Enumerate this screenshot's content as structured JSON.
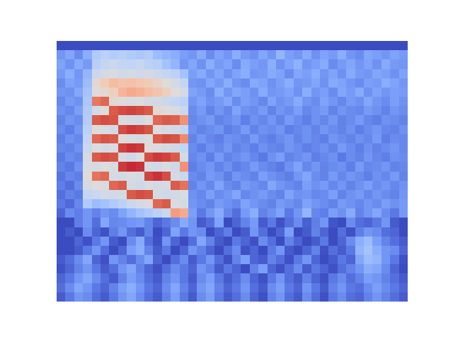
{
  "chart_data": {
    "type": "heatmap",
    "tick_labels": false,
    "color_range": [
      15,
      100
    ],
    "cells": [
      [
        5,
        5,
        5,
        5,
        5,
        5,
        5,
        5,
        5,
        5,
        5,
        5,
        5,
        5,
        5,
        5,
        5,
        5,
        5,
        5,
        5,
        5,
        5,
        5,
        5,
        5,
        5,
        5,
        5,
        5,
        5,
        5,
        5,
        5,
        5,
        5,
        5,
        5,
        5,
        5
      ],
      [
        30,
        34,
        28,
        36,
        45,
        48,
        46,
        47,
        45,
        44,
        46,
        40,
        38,
        36,
        32,
        30,
        35,
        28,
        33,
        30,
        36,
        31,
        29,
        34,
        30,
        38,
        32,
        30,
        35,
        29,
        33,
        31,
        36,
        30,
        28,
        34,
        32,
        30,
        33,
        31
      ],
      [
        33,
        29,
        35,
        31,
        47,
        50,
        52,
        50,
        49,
        51,
        48,
        47,
        42,
        38,
        30,
        34,
        29,
        36,
        31,
        33,
        28,
        35,
        32,
        30,
        36,
        29,
        33,
        37,
        30,
        32,
        35,
        28,
        31,
        34,
        30,
        33,
        29,
        35,
        31,
        30
      ],
      [
        31,
        36,
        30,
        38,
        52,
        55,
        56,
        54,
        55,
        53,
        55,
        52,
        50,
        48,
        42,
        32,
        35,
        30,
        34,
        29,
        33,
        36,
        30,
        31,
        35,
        33,
        28,
        34,
        32,
        36,
        30,
        33,
        29,
        35,
        31,
        30,
        34,
        32,
        29,
        33
      ],
      [
        28,
        33,
        31,
        40,
        60,
        66,
        70,
        68,
        69,
        67,
        66,
        62,
        58,
        55,
        50,
        30,
        29,
        34,
        31,
        36,
        30,
        28,
        35,
        33,
        29,
        32,
        36,
        30,
        31,
        34,
        29,
        35,
        33,
        30,
        28,
        32,
        31,
        36,
        33,
        30
      ],
      [
        30,
        29,
        34,
        42,
        58,
        60,
        64,
        72,
        75,
        73,
        70,
        68,
        64,
        58,
        55,
        33,
        31,
        28,
        36,
        30,
        34,
        32,
        29,
        35,
        30,
        31,
        33,
        29,
        36,
        30,
        32,
        28,
        34,
        31,
        35,
        29,
        33,
        30,
        32,
        31
      ],
      [
        27,
        31,
        29,
        44,
        85,
        88,
        60,
        58,
        56,
        57,
        55,
        54,
        52,
        50,
        48,
        30,
        33,
        29,
        31,
        34,
        28,
        32,
        30,
        27,
        33,
        29,
        31,
        35,
        30,
        28,
        33,
        30,
        27,
        31,
        29,
        34,
        30,
        28,
        32,
        29
      ],
      [
        29,
        27,
        32,
        45,
        55,
        58,
        90,
        92,
        93,
        92,
        90,
        60,
        58,
        56,
        52,
        28,
        31,
        26,
        30,
        27,
        33,
        29,
        28,
        31,
        26,
        30,
        28,
        32,
        27,
        29,
        31,
        26,
        30,
        28,
        27,
        31,
        29,
        26,
        30,
        28
      ],
      [
        26,
        30,
        28,
        46,
        90,
        92,
        91,
        56,
        55,
        54,
        57,
        88,
        90,
        89,
        80,
        27,
        29,
        31,
        26,
        28,
        30,
        25,
        29,
        27,
        30,
        26,
        31,
        28,
        25,
        29,
        27,
        30,
        26,
        28,
        31,
        27,
        25,
        29,
        28,
        26
      ],
      [
        28,
        25,
        30,
        48,
        58,
        56,
        55,
        92,
        94,
        93,
        91,
        57,
        55,
        54,
        50,
        29,
        26,
        28,
        30,
        25,
        27,
        31,
        26,
        29,
        28,
        30,
        25,
        27,
        29,
        26,
        30,
        28,
        26,
        29,
        25,
        28,
        30,
        27,
        26,
        29
      ],
      [
        25,
        29,
        27,
        50,
        88,
        91,
        90,
        58,
        56,
        55,
        57,
        90,
        92,
        91,
        82,
        26,
        30,
        27,
        25,
        29,
        28,
        26,
        31,
        27,
        25,
        28,
        30,
        26,
        29,
        27,
        25,
        30,
        28,
        26,
        29,
        27,
        31,
        25,
        28,
        27
      ],
      [
        27,
        26,
        29,
        52,
        57,
        55,
        56,
        93,
        95,
        94,
        58,
        56,
        55,
        53,
        50,
        28,
        25,
        29,
        27,
        30,
        26,
        28,
        25,
        29,
        27,
        26,
        30,
        28,
        25,
        27,
        29,
        26,
        31,
        28,
        25,
        29,
        26,
        28,
        30,
        27
      ],
      [
        24,
        28,
        26,
        55,
        90,
        92,
        91,
        56,
        54,
        57,
        92,
        94,
        93,
        90,
        55,
        27,
        29,
        25,
        31,
        26,
        28,
        30,
        27,
        24,
        29,
        32,
        26,
        28,
        30,
        25,
        27,
        29,
        24,
        28,
        26,
        30,
        27,
        25,
        29,
        28
      ],
      [
        26,
        24,
        29,
        56,
        55,
        57,
        56,
        94,
        96,
        95,
        55,
        54,
        56,
        53,
        80,
        25,
        28,
        30,
        26,
        29,
        25,
        27,
        31,
        28,
        26,
        24,
        29,
        33,
        27,
        30,
        26,
        28,
        29,
        25,
        31,
        27,
        28,
        30,
        26,
        27
      ],
      [
        23,
        27,
        25,
        58,
        86,
        88,
        55,
        54,
        56,
        55,
        93,
        95,
        92,
        55,
        52,
        28,
        26,
        31,
        29,
        25,
        30,
        28,
        26,
        32,
        29,
        27,
        25,
        30,
        34,
        28,
        26,
        31,
        27,
        30,
        28,
        25,
        29,
        27,
        31,
        26
      ],
      [
        25,
        22,
        28,
        55,
        58,
        56,
        88,
        90,
        55,
        53,
        56,
        54,
        55,
        90,
        86,
        26,
        30,
        27,
        33,
        28,
        26,
        31,
        29,
        27,
        34,
        30,
        28,
        26,
        32,
        29,
        31,
        27,
        30,
        26,
        29,
        32,
        28,
        30,
        27,
        29
      ],
      [
        22,
        26,
        24,
        50,
        52,
        55,
        54,
        55,
        90,
        92,
        91,
        55,
        53,
        54,
        56,
        29,
        27,
        32,
        28,
        30,
        34,
        27,
        29,
        31,
        28,
        26,
        33,
        29,
        30,
        27,
        28,
        32,
        26,
        29,
        31,
        27,
        30,
        28,
        26,
        30
      ],
      [
        24,
        21,
        27,
        45,
        40,
        42,
        45,
        48,
        52,
        55,
        56,
        88,
        90,
        56,
        55,
        30,
        28,
        26,
        31,
        29,
        27,
        33,
        30,
        28,
        26,
        31,
        29,
        27,
        33,
        30,
        28,
        26,
        31,
        29,
        27,
        30,
        28,
        32,
        29,
        31
      ],
      [
        20,
        28,
        25,
        30,
        26,
        30,
        28,
        33,
        38,
        42,
        45,
        48,
        52,
        78,
        75,
        32,
        24,
        30,
        35,
        27,
        22,
        31,
        36,
        26,
        29,
        33,
        24,
        30,
        38,
        27,
        25,
        32,
        29,
        35,
        26,
        30,
        34,
        28,
        24,
        31
      ],
      [
        15,
        12,
        25,
        30,
        22,
        34,
        27,
        28,
        30,
        31,
        26,
        20,
        24,
        28,
        35,
        30,
        18,
        22,
        33,
        15,
        20,
        26,
        31,
        18,
        24,
        16,
        22,
        28,
        19,
        25,
        30,
        17,
        14,
        28,
        22,
        20,
        24,
        30,
        18,
        12
      ],
      [
        12,
        18,
        14,
        28,
        20,
        16,
        25,
        30,
        22,
        18,
        26,
        15,
        20,
        33,
        24,
        30,
        28,
        14,
        20,
        25,
        12,
        18,
        30,
        22,
        15,
        20,
        32,
        14,
        18,
        26,
        20,
        12,
        22,
        16,
        25,
        30,
        28,
        22,
        20,
        15
      ],
      [
        10,
        14,
        20,
        16,
        24,
        30,
        18,
        12,
        28,
        35,
        22,
        16,
        30,
        20,
        14,
        22,
        34,
        26,
        18,
        12,
        24,
        20,
        16,
        28,
        22,
        14,
        26,
        20,
        12,
        18,
        24,
        14,
        20,
        28,
        36,
        40,
        32,
        26,
        22,
        18
      ],
      [
        14,
        10,
        18,
        24,
        30,
        22,
        14,
        20,
        32,
        36,
        26,
        18,
        24,
        14,
        20,
        30,
        26,
        20,
        14,
        22,
        28,
        16,
        20,
        14,
        24,
        30,
        18,
        12,
        20,
        26,
        16,
        22,
        18,
        24,
        38,
        42,
        36,
        30,
        28,
        20
      ],
      [
        18,
        22,
        28,
        34,
        20,
        16,
        30,
        26,
        22,
        28,
        34,
        20,
        14,
        22,
        28,
        18,
        24,
        30,
        22,
        16,
        26,
        32,
        20,
        18,
        26,
        22,
        16,
        24,
        30,
        20,
        14,
        18,
        24,
        20,
        34,
        40,
        38,
        30,
        24,
        16
      ],
      [
        16,
        20,
        26,
        30,
        24,
        18,
        22,
        30,
        34,
        26,
        20,
        16,
        22,
        28,
        24,
        20,
        30,
        26,
        18,
        24,
        20,
        14,
        26,
        32,
        20,
        16,
        22,
        28,
        18,
        24,
        20,
        16,
        22,
        26,
        30,
        36,
        34,
        28,
        20,
        14
      ],
      [
        20,
        24,
        30,
        34,
        28,
        22,
        18,
        26,
        32,
        28,
        22,
        18,
        26,
        30,
        24,
        18,
        28,
        32,
        24,
        18,
        22,
        28,
        20,
        16,
        24,
        30,
        22,
        18,
        26,
        20,
        16,
        24,
        28,
        22,
        26,
        32,
        30,
        26,
        22,
        18
      ],
      [
        22,
        28,
        34,
        30,
        24,
        20,
        26,
        32,
        36,
        30,
        24,
        20,
        28,
        34,
        26,
        20,
        30,
        34,
        26,
        20,
        24,
        30,
        22,
        18,
        28,
        32,
        24,
        20,
        30,
        24,
        18,
        26,
        30,
        24,
        22,
        28,
        32,
        28,
        24,
        20
      ],
      [
        18,
        24,
        30,
        28,
        22,
        18,
        24,
        30,
        34,
        28,
        22,
        18,
        26,
        32,
        24,
        18,
        28,
        32,
        24,
        18,
        22,
        28,
        20,
        16,
        26,
        30,
        22,
        18,
        28,
        22,
        16,
        24,
        28,
        22,
        20,
        26,
        30,
        26,
        22,
        18
      ]
    ]
  }
}
